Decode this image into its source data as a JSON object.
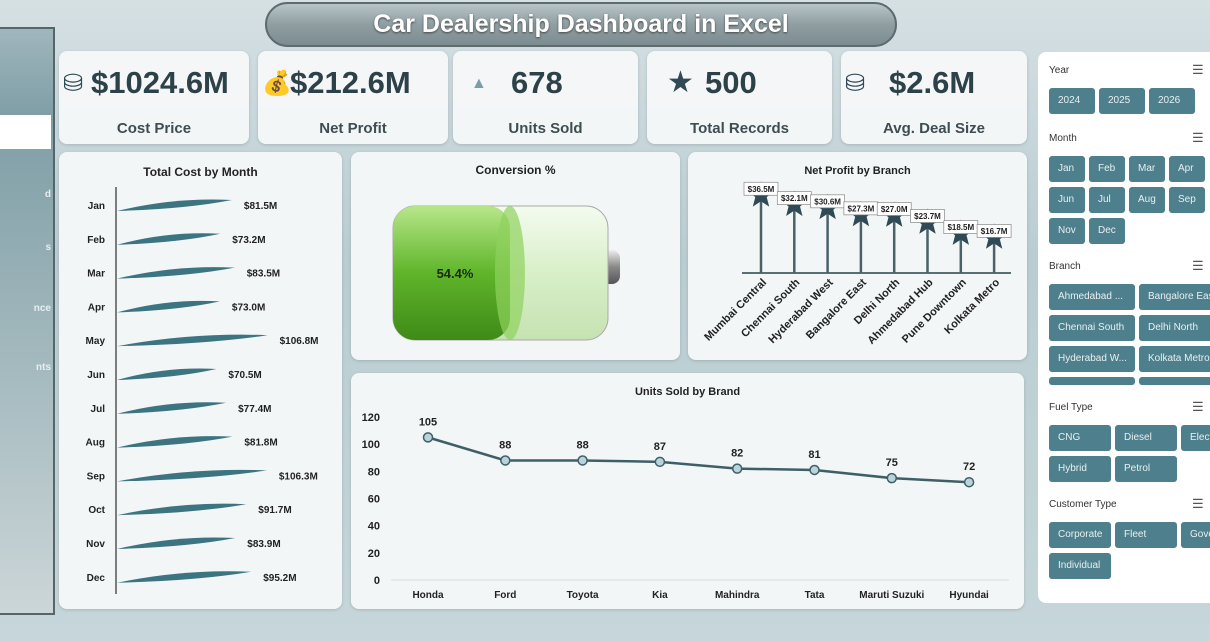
{
  "title": "Car Dealership Dashboard in Excel",
  "sidebar": {
    "items": [
      "d",
      "s",
      "nce",
      "nts"
    ]
  },
  "kpis": [
    {
      "icon": "coins-icon",
      "value": "$1024.6M",
      "label": "Cost Price"
    },
    {
      "icon": "money-bag-icon",
      "value": "$212.6M",
      "label": "Net Profit"
    },
    {
      "icon": "gold-bars-icon",
      "value": "678",
      "label": "Units Sold"
    },
    {
      "icon": "star-icon",
      "value": "500",
      "label": "Total Records"
    },
    {
      "icon": "coins-icon",
      "value": "$2.6M",
      "label": "Avg. Deal Size"
    }
  ],
  "chart_data": [
    {
      "type": "bar",
      "title": "Total Cost by Month",
      "categories": [
        "Jan",
        "Feb",
        "Mar",
        "Apr",
        "May",
        "Jun",
        "Jul",
        "Aug",
        "Sep",
        "Oct",
        "Nov",
        "Dec"
      ],
      "values": [
        81.5,
        73.2,
        83.5,
        73.0,
        106.8,
        70.5,
        77.4,
        81.8,
        106.3,
        91.7,
        83.9,
        95.2
      ],
      "labels": [
        "$81.5M",
        "$73.2M",
        "$83.5M",
        "$73.0M",
        "$106.8M",
        "$70.5M",
        "$77.4M",
        "$81.8M",
        "$106.3M",
        "$91.7M",
        "$83.9M",
        "$95.2M"
      ],
      "unit": "M$"
    },
    {
      "type": "gauge",
      "title": "Conversion %",
      "value": 54.4,
      "label": "54.4%"
    },
    {
      "type": "bar",
      "title": "Net Profit by Branch",
      "categories": [
        "Mumbai Central",
        "Chennai South",
        "Hyderabad West",
        "Bangalore East",
        "Delhi North",
        "Ahmedabad Hub",
        "Pune Downtown",
        "Kolkata Metro"
      ],
      "values": [
        36.5,
        32.1,
        30.6,
        27.3,
        27.0,
        23.7,
        18.5,
        16.7
      ],
      "labels": [
        "$36.5M",
        "$32.1M",
        "$30.6M",
        "$27.3M",
        "$27.0M",
        "$23.7M",
        "$18.5M",
        "$16.7M"
      ]
    },
    {
      "type": "line",
      "title": "Units Sold by Brand",
      "categories": [
        "Honda",
        "Ford",
        "Toyota",
        "Kia",
        "Mahindra",
        "Tata",
        "Maruti Suzuki",
        "Hyundai"
      ],
      "values": [
        105,
        88,
        88,
        87,
        82,
        81,
        75,
        72
      ],
      "yticks": [
        "0",
        "20",
        "40",
        "60",
        "80",
        "100",
        "120"
      ],
      "ylim": [
        0,
        120
      ]
    }
  ],
  "slicers": [
    {
      "title": "Year",
      "items": [
        "2024",
        "2025",
        "2026"
      ]
    },
    {
      "title": "Month",
      "items": [
        "Jan",
        "Feb",
        "Mar",
        "Apr",
        "Jun",
        "Jul",
        "Aug",
        "Sep",
        "Nov",
        "Dec"
      ]
    },
    {
      "title": "Branch",
      "items": [
        "Ahmedabad ...",
        "Bangalore East",
        "Chennai South",
        "Delhi North",
        "Hyderabad W...",
        "Kolkata Metro",
        "",
        ""
      ]
    },
    {
      "title": "Fuel Type",
      "items": [
        "CNG",
        "Diesel",
        "Electric",
        "Hybrid",
        "Petrol"
      ]
    },
    {
      "title": "Customer Type",
      "items": [
        "Corporate",
        "Fleet",
        "Government",
        "Individual"
      ]
    }
  ],
  "colors": {
    "accent": "#4e7f8c",
    "dark": "#2f4a55",
    "battery": "#6cc232"
  }
}
